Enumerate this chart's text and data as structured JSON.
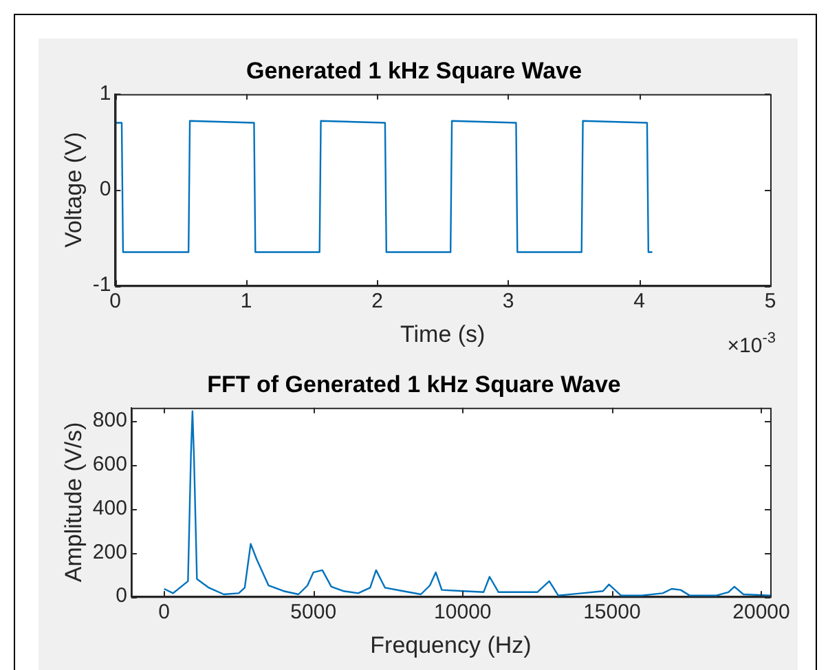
{
  "chart_data": [
    {
      "type": "line",
      "title": "Generated 1 kHz Square Wave",
      "xlabel": "Time (s)",
      "ylabel": "Voltage (V)",
      "x": [
        0,
        0.05,
        0.06,
        0.56,
        0.57,
        1.06,
        1.07,
        1.56,
        1.57,
        2.06,
        2.07,
        2.56,
        2.57,
        3.06,
        3.07,
        3.56,
        3.57,
        4.06,
        4.07,
        4.1
      ],
      "series": [
        {
          "color": "#0072bd",
          "values": [
            0.7,
            0.7,
            -0.65,
            -0.65,
            0.72,
            0.7,
            -0.65,
            -0.65,
            0.72,
            0.7,
            -0.65,
            -0.65,
            0.72,
            0.7,
            -0.65,
            -0.65,
            0.72,
            0.7,
            -0.65,
            -0.65
          ]
        }
      ],
      "xlim": [
        0,
        5
      ],
      "xticks": [
        0,
        1,
        2,
        3,
        4,
        5
      ],
      "ylim": [
        -1,
        1
      ],
      "yticks": [
        -1,
        0,
        1
      ],
      "annotations": [
        "×10$^{-3}$"
      ]
    },
    {
      "type": "line",
      "title": "FFT of Generated 1 kHz Square Wave",
      "xlabel": "Frequency (Hz)",
      "ylabel": "Amplitude (V/s)",
      "x": [
        0,
        300,
        800,
        900,
        950,
        1000,
        1100,
        1500,
        2000,
        2500,
        2700,
        2900,
        3100,
        3500,
        4000,
        4500,
        4800,
        5000,
        5300,
        5600,
        6000,
        6500,
        6900,
        7100,
        7400,
        8000,
        8600,
        8900,
        9100,
        9300,
        10000,
        10700,
        10900,
        11200,
        12500,
        12900,
        13200,
        14000,
        14700,
        14900,
        15300,
        16000,
        16700,
        17000,
        17300,
        17600,
        18500,
        18900,
        19100,
        19400,
        20300
      ],
      "series": [
        {
          "color": "#0072bd",
          "values": [
            35,
            15,
            70,
            650,
            845,
            640,
            80,
            40,
            10,
            15,
            40,
            240,
            170,
            50,
            25,
            10,
            50,
            110,
            120,
            45,
            25,
            15,
            40,
            120,
            40,
            25,
            10,
            50,
            110,
            30,
            25,
            20,
            90,
            20,
            20,
            70,
            5,
            15,
            25,
            55,
            5,
            5,
            15,
            35,
            30,
            5,
            5,
            20,
            45,
            10,
            5
          ]
        }
      ],
      "xlim": [
        -1100,
        20300
      ],
      "xticks": [
        0,
        5000,
        10000,
        15000,
        20000
      ],
      "ylim": [
        0,
        860
      ],
      "yticks": [
        0,
        200,
        400,
        600,
        800
      ]
    }
  ]
}
